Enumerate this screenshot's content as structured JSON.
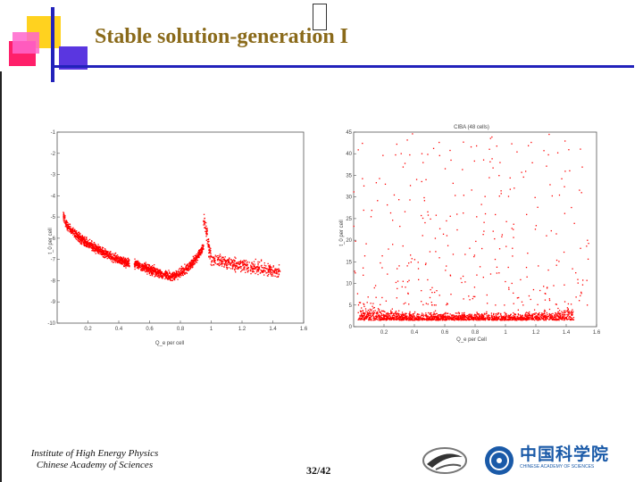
{
  "slide": {
    "title": "Stable solution-generation I",
    "page": "32/42",
    "footer_line1": "Institute of High Energy Physics",
    "footer_line2": "Chinese Academy of Sciences",
    "logo_text": "中国科学院",
    "logo_subtext": "CHINESE ACADEMY OF SCIENCES",
    "colors": {
      "title": "#8a6a1a",
      "accent": "#2222bb",
      "points": "#ff0000"
    }
  },
  "chart_data": [
    {
      "type": "scatter",
      "title": "",
      "xlabel": "Q_e per cell",
      "ylabel": "t_0 per cell",
      "xlim": [
        0,
        1.6
      ],
      "ylim": [
        -10,
        -1
      ],
      "xticks": [
        "0.2",
        "0.4",
        "0.6",
        "0.8",
        "1",
        "1.2",
        "1.4",
        "1.6"
      ],
      "yticks": [
        "-1",
        "-2",
        "-3",
        "-4",
        "-5",
        "-6",
        "-7",
        "-8",
        "-9",
        "-10"
      ],
      "clusters": [
        {
          "x_range": [
            0.04,
            0.47
          ],
          "y_shape": "decay",
          "y_start": -4.8,
          "y_end": -7.2,
          "spread": 0.35,
          "count": 900
        },
        {
          "x_range": [
            0.5,
            0.95
          ],
          "y_shape": "valley",
          "y_start": -7.2,
          "y_min": -7.8,
          "y_end": -6.4,
          "spread": 0.35,
          "count": 900
        },
        {
          "x_range": [
            0.95,
            1.0
          ],
          "y_shape": "flat",
          "y_start": -5.0,
          "y_end": -7.0,
          "spread": 0.7,
          "count": 80
        },
        {
          "x_range": [
            1.0,
            1.45
          ],
          "y_shape": "flat",
          "y_start": -7.0,
          "y_end": -7.6,
          "spread": 0.5,
          "count": 420
        }
      ],
      "grid": false
    },
    {
      "type": "scatter",
      "title": "CIBA (48 cells)",
      "xlabel": "Q_e per Cell",
      "ylabel": "t_0 per cell",
      "xlim": [
        0,
        1.6
      ],
      "ylim": [
        0,
        45
      ],
      "xticks": [
        "0.2",
        "0.4",
        "0.6",
        "0.8",
        "1",
        "1.2",
        "1.4",
        "1.6"
      ],
      "yticks": [
        "45",
        "40",
        "35",
        "30",
        "25",
        "20",
        "15",
        "10",
        "5",
        "0"
      ],
      "clusters": [
        {
          "x_range": [
            0.03,
            1.45
          ],
          "y_shape": "floor",
          "y_start": 1.5,
          "y_end": 1.5,
          "spread": 2.5,
          "count": 1800
        },
        {
          "x_range": [
            0.0,
            1.55
          ],
          "y_shape": "sparse",
          "y_start": 5,
          "y_end": 45,
          "spread": 0,
          "count": 320
        }
      ],
      "grid": false
    }
  ]
}
